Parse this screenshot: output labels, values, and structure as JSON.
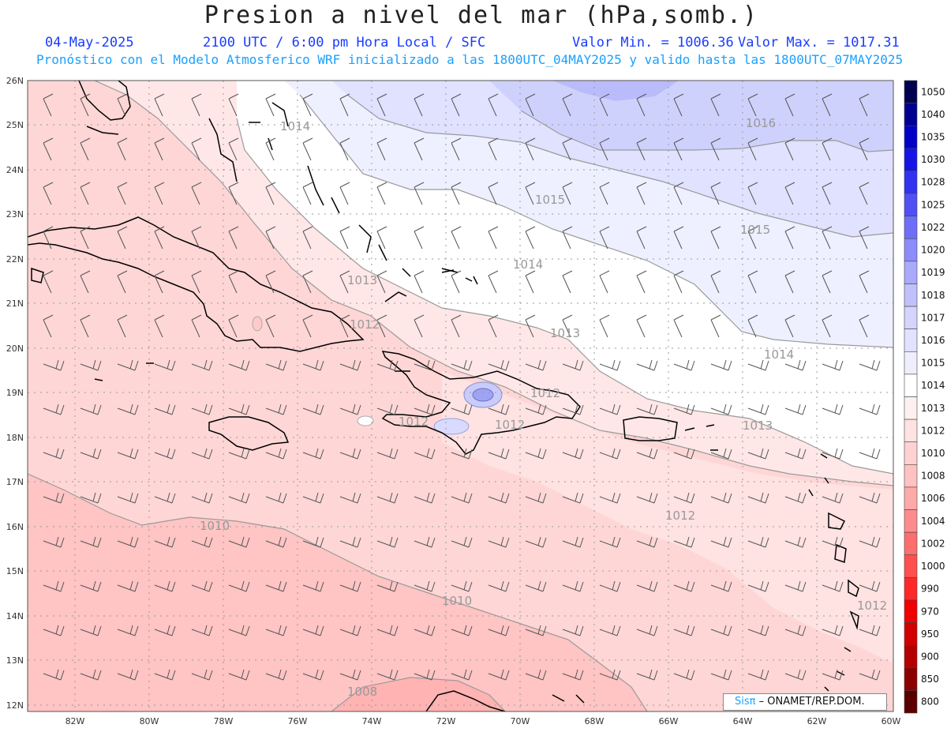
{
  "header": {
    "title": "Presion a nivel del mar (hPa,somb.)",
    "date": "04-May-2025",
    "time_info": "2100 UTC / 6:00 pm Hora Local / SFC",
    "min_value": "Valor Min. = 1006.36",
    "max_value": "Valor Max. = 1017.31",
    "forecast_info": "Pronóstico con el Modelo Atmosferico WRF inicializado a las 1800UTC_04MAY2025 y valido hasta las  1800UTC_07MAY2025"
  },
  "map": {
    "lat_labels": [
      "26N",
      "25N",
      "24N",
      "23N",
      "22N",
      "21N",
      "20N",
      "19N",
      "18N",
      "17N",
      "16N",
      "15N",
      "14N",
      "13N",
      "12N"
    ],
    "lon_labels": [
      "82W",
      "80W",
      "78W",
      "76W",
      "74W",
      "72W",
      "70W",
      "68W",
      "66W",
      "64W",
      "62W",
      "60W"
    ],
    "contour_labels": [
      {
        "text": "1016",
        "region": "north-east"
      },
      {
        "text": "1015",
        "region": "north"
      },
      {
        "text": "1015",
        "region": "north-east"
      },
      {
        "text": "1014",
        "region": "bahamas"
      },
      {
        "text": "1014",
        "region": "north-central"
      },
      {
        "text": "1014",
        "region": "east"
      },
      {
        "text": "1013",
        "region": "cuba"
      },
      {
        "text": "1013",
        "region": "central"
      },
      {
        "text": "1013",
        "region": "puerto-rico"
      },
      {
        "text": "1012",
        "region": "cuba-east"
      },
      {
        "text": "1012",
        "region": "hispaniola-north"
      },
      {
        "text": "1012",
        "region": "hispaniola-south"
      },
      {
        "text": "1012",
        "region": "haiti"
      },
      {
        "text": "1012",
        "region": "caribbean-east"
      },
      {
        "text": "1012",
        "region": "lesser-antilles"
      },
      {
        "text": "1010",
        "region": "west"
      },
      {
        "text": "1010",
        "region": "south-central"
      },
      {
        "text": "1008",
        "region": "south"
      }
    ],
    "land_color": "#000000",
    "grid_color": "#999999"
  },
  "legend": {
    "levels": [
      "1050",
      "1040",
      "1035",
      "1030",
      "1028",
      "1025",
      "1022",
      "1020",
      "1019",
      "1018",
      "1017",
      "1016",
      "1015",
      "1014",
      "1013",
      "1012",
      "1010",
      "1008",
      "1006",
      "1004",
      "1002",
      "1000",
      "990",
      "970",
      "950",
      "900",
      "850",
      "800"
    ],
    "colors": [
      "#000050",
      "#000090",
      "#0000c8",
      "#1414e6",
      "#3232f0",
      "#5050f5",
      "#6e6ef8",
      "#8c8cfa",
      "#aaaafc",
      "#c0c0fd",
      "#d4d4fe",
      "#e2e2ff",
      "#eeeeff",
      "#ffffff",
      "#fff0f0",
      "#ffe2e2",
      "#ffd2d2",
      "#ffc2c2",
      "#ffaaaa",
      "#ff8c8c",
      "#ff6e6e",
      "#ff5050",
      "#ff2828",
      "#f00000",
      "#d20000",
      "#b40000",
      "#8c0000",
      "#5a0000"
    ]
  },
  "credit": {
    "brand": "Sisπ",
    "text": "– ONAMET/REP.DOM."
  }
}
